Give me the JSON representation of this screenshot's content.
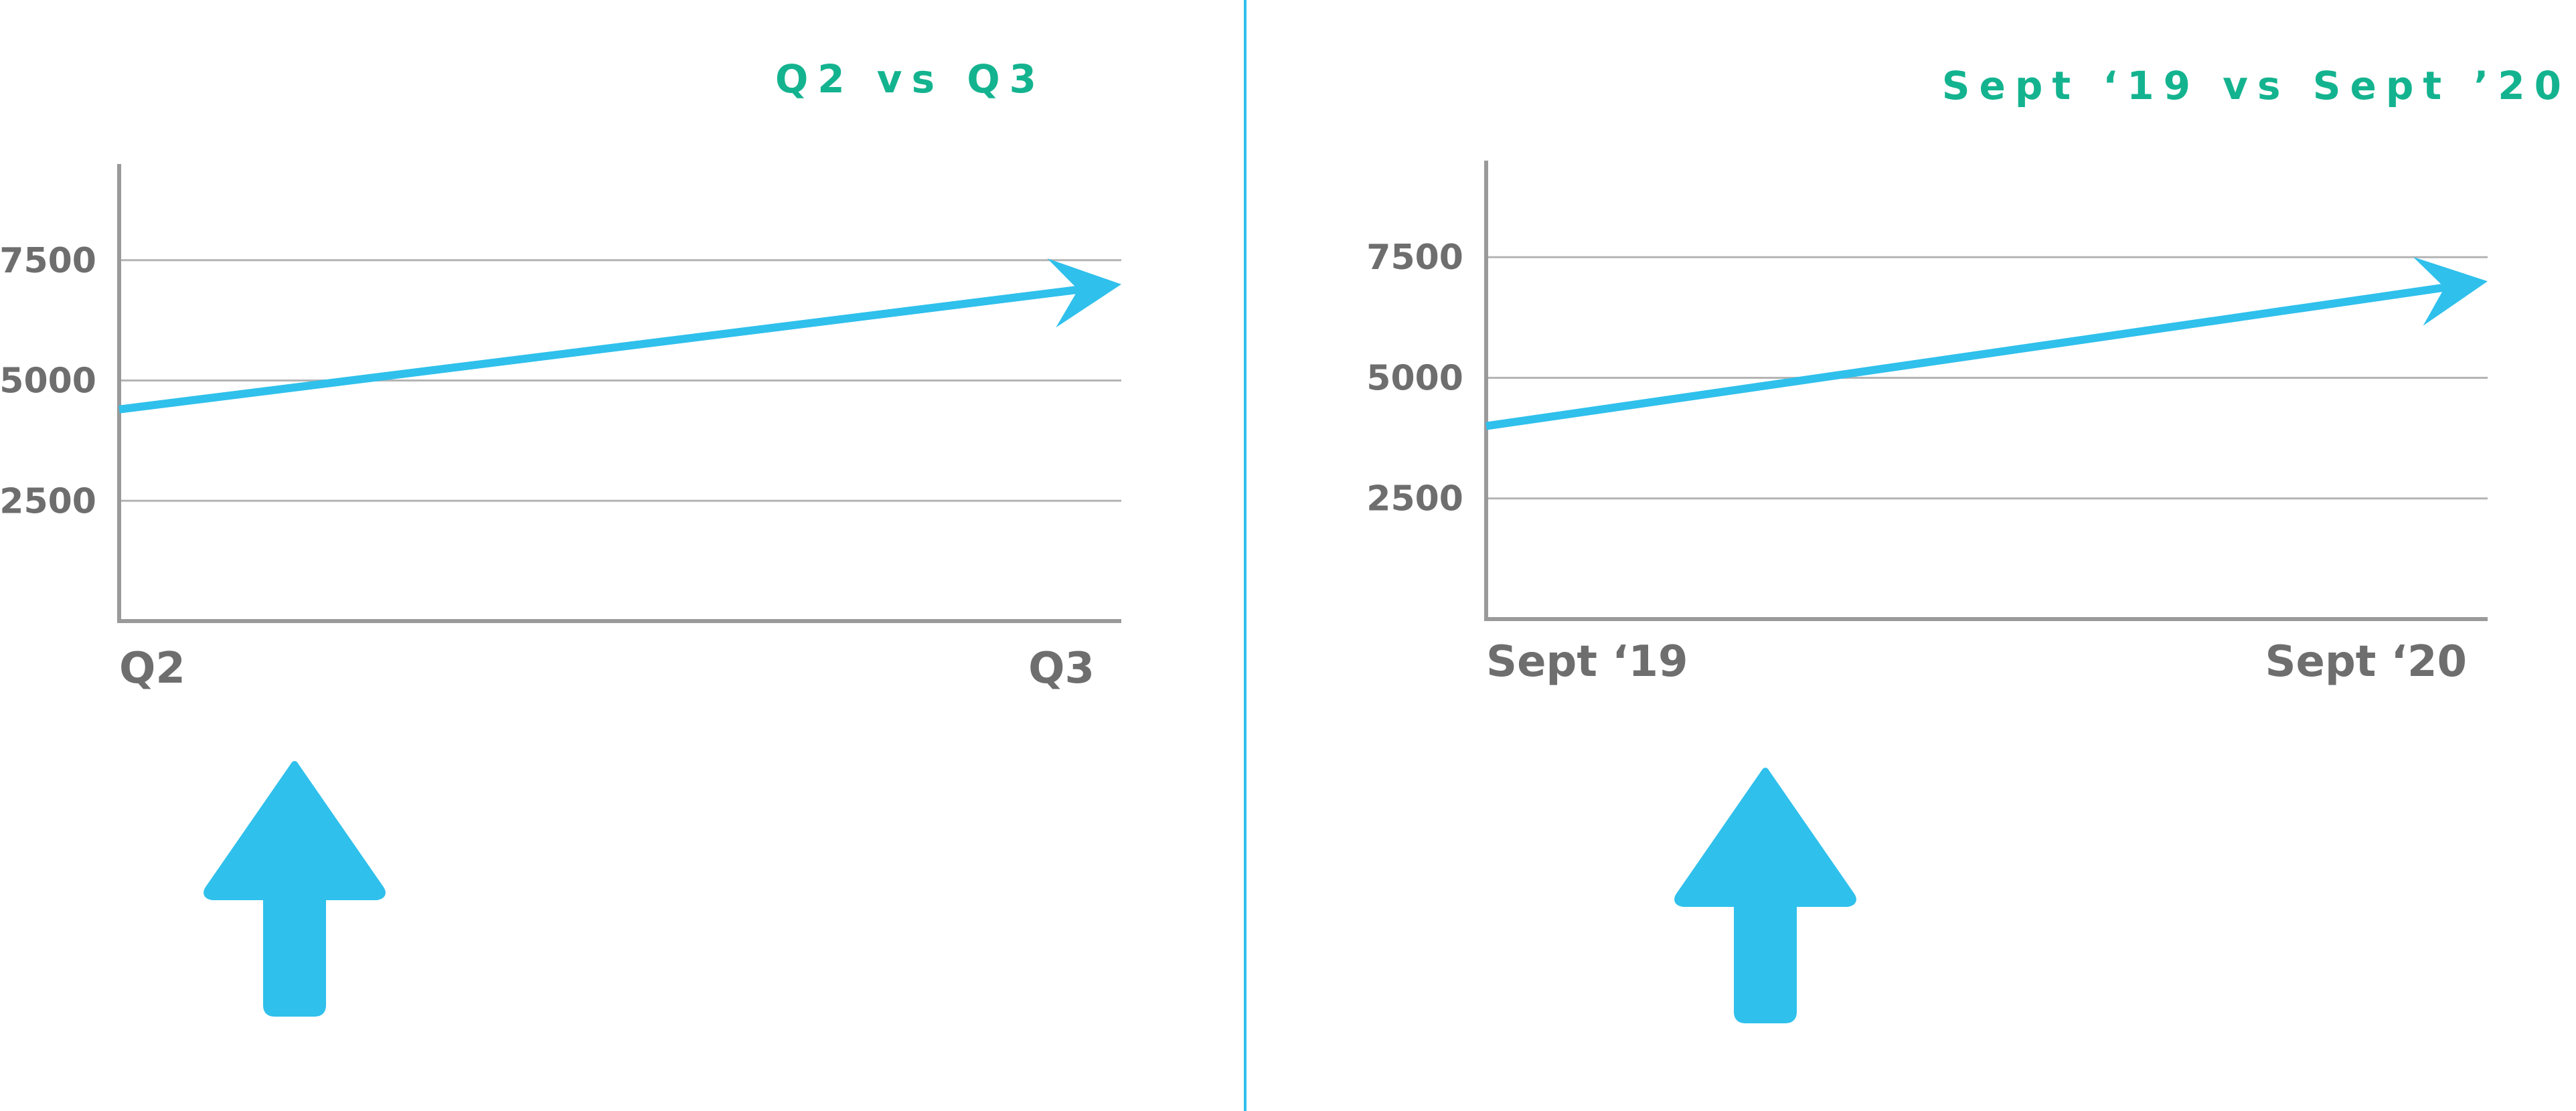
{
  "colors": {
    "accent": "#2fc0ec",
    "title": "#14b38f",
    "axis": "#9a9a9a",
    "grid": "#b4b4b4",
    "tick_text": "#6e6e6e",
    "divider": "#2fc0ec"
  },
  "icons": [
    "trend-arrow-icon",
    "up-arrow-icon"
  ],
  "chart_data": [
    {
      "type": "line",
      "title": "Q2 vs Q3",
      "categories": [
        "Q2",
        "Q3"
      ],
      "series": [
        {
          "values": [
            4400,
            7000
          ]
        }
      ],
      "ylim": [
        0,
        9500
      ],
      "yticks": [
        "2500",
        "5000",
        "7500"
      ],
      "grid": true,
      "xlabel": "",
      "ylabel": ""
    },
    {
      "type": "line",
      "title": "Sept ‘19 vs Sept ’20",
      "categories": [
        "Sept ‘19",
        "Sept ‘20"
      ],
      "series": [
        {
          "values": [
            4000,
            7000
          ]
        }
      ],
      "ylim": [
        0,
        9500
      ],
      "yticks": [
        "2500",
        "5000",
        "7500"
      ],
      "grid": true,
      "xlabel": "",
      "ylabel": ""
    }
  ]
}
